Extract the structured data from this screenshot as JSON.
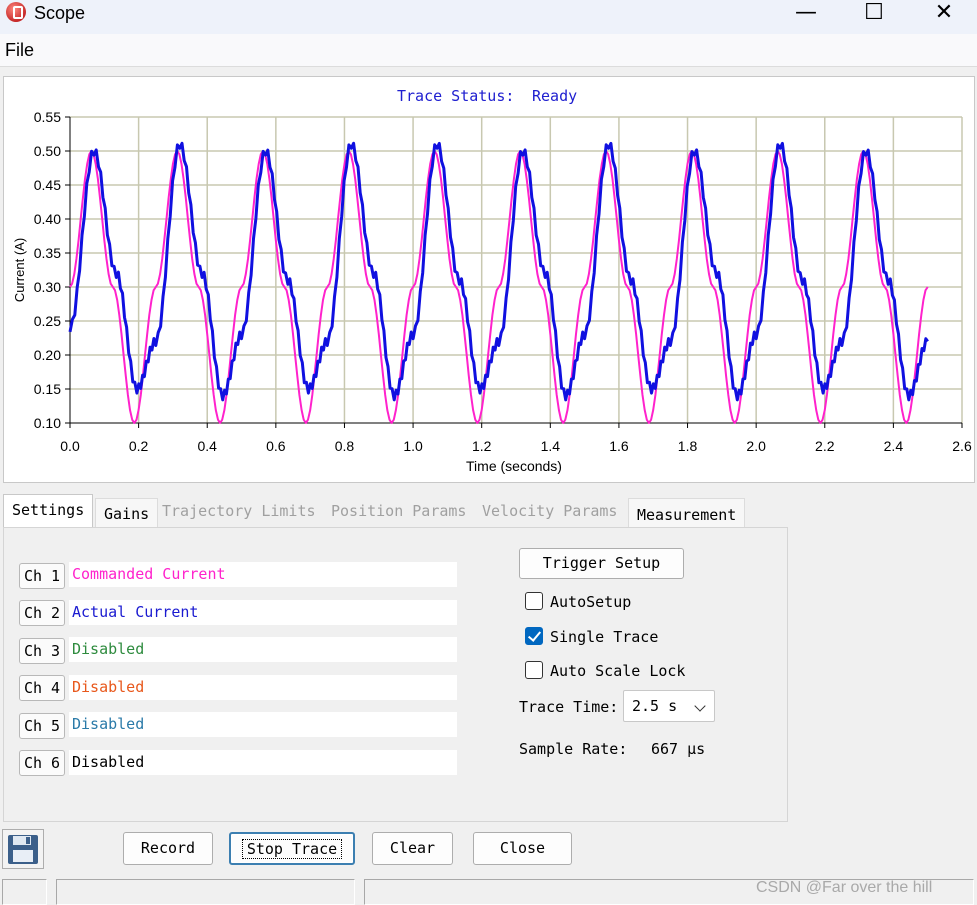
{
  "window": {
    "title": "Scope",
    "controls": {
      "minimize": "—",
      "maximize": "☐",
      "close": "✕"
    }
  },
  "menu": {
    "file": "File"
  },
  "chart": {
    "status_label": "Trace Status:",
    "status_value": "Ready",
    "colors": {
      "commanded": "#ff22cc",
      "actual": "#1010e0",
      "grid": "#c8c8b0",
      "status_text": "#2020d0"
    }
  },
  "chart_data": {
    "type": "line",
    "xlabel": "Time (seconds)",
    "ylabel": "Current (A)",
    "xlim": [
      0.0,
      2.6
    ],
    "ylim": [
      0.1,
      0.55
    ],
    "x_ticks": [
      "0.0",
      "0.2",
      "0.4",
      "0.6",
      "0.8",
      "1.0",
      "1.2",
      "1.4",
      "1.6",
      "1.8",
      "2.0",
      "2.2",
      "2.4",
      "2.6"
    ],
    "y_ticks": [
      "0.10",
      "0.15",
      "0.20",
      "0.25",
      "0.30",
      "0.35",
      "0.40",
      "0.45",
      "0.50",
      "0.55"
    ],
    "grid": true,
    "x_end": 2.5,
    "series": [
      {
        "name": "Commanded Current",
        "color": "#ff22cc",
        "x": [
          0.0,
          0.0625,
          0.125,
          0.1875,
          0.25,
          0.3125,
          0.375,
          0.4375,
          0.5,
          0.5625,
          0.625,
          0.6875,
          0.75,
          0.8125,
          0.875,
          0.9375,
          1.0,
          1.0625,
          1.125,
          1.1875,
          1.25,
          1.3125,
          1.375,
          1.4375,
          1.5,
          1.5625,
          1.625,
          1.6875,
          1.75,
          1.8125,
          1.875,
          1.9375,
          2.0,
          2.0625,
          2.125,
          2.1875,
          2.25,
          2.3125,
          2.375,
          2.4375,
          2.5
        ],
        "values": [
          0.3,
          0.5,
          0.3,
          0.1,
          0.3,
          0.5,
          0.3,
          0.1,
          0.3,
          0.5,
          0.3,
          0.1,
          0.3,
          0.5,
          0.3,
          0.1,
          0.3,
          0.5,
          0.3,
          0.1,
          0.3,
          0.5,
          0.3,
          0.1,
          0.3,
          0.5,
          0.3,
          0.1,
          0.3,
          0.5,
          0.3,
          0.1,
          0.3,
          0.5,
          0.3,
          0.1,
          0.3,
          0.5,
          0.3,
          0.1,
          0.3
        ]
      },
      {
        "name": "Actual Current",
        "color": "#1010e0",
        "x": [
          0.0,
          0.07,
          0.135,
          0.195,
          0.25,
          0.32,
          0.385,
          0.445,
          0.5,
          0.57,
          0.635,
          0.695,
          0.75,
          0.82,
          0.885,
          0.945,
          1.0,
          1.07,
          1.135,
          1.195,
          1.25,
          1.32,
          1.385,
          1.445,
          1.5,
          1.57,
          1.635,
          1.695,
          1.75,
          1.82,
          1.885,
          1.945,
          2.0,
          2.07,
          2.135,
          2.195,
          2.25,
          2.32,
          2.385,
          2.445,
          2.5
        ],
        "values": [
          0.24,
          0.5,
          0.32,
          0.15,
          0.22,
          0.51,
          0.32,
          0.14,
          0.23,
          0.5,
          0.31,
          0.15,
          0.22,
          0.51,
          0.32,
          0.14,
          0.23,
          0.51,
          0.31,
          0.15,
          0.22,
          0.5,
          0.32,
          0.14,
          0.23,
          0.51,
          0.31,
          0.15,
          0.22,
          0.5,
          0.32,
          0.14,
          0.23,
          0.51,
          0.31,
          0.15,
          0.22,
          0.5,
          0.31,
          0.14,
          0.22
        ]
      }
    ]
  },
  "tabs": [
    {
      "label": "Settings",
      "state": "active"
    },
    {
      "label": "Gains",
      "state": "enabled"
    },
    {
      "label": "Trajectory Limits",
      "state": "disabled"
    },
    {
      "label": "Position Params",
      "state": "disabled"
    },
    {
      "label": "Velocity Params",
      "state": "disabled"
    },
    {
      "label": "Measurement",
      "state": "enabled"
    }
  ],
  "channels": [
    {
      "button": "Ch 1",
      "value": "Commanded Current",
      "color": "#ff22cc"
    },
    {
      "button": "Ch 2",
      "value": "Actual Current",
      "color": "#1a1ad0"
    },
    {
      "button": "Ch 3",
      "value": "Disabled",
      "color": "#2e8b3e"
    },
    {
      "button": "Ch 4",
      "value": "Disabled",
      "color": "#e8581c"
    },
    {
      "button": "Ch 5",
      "value": "Disabled",
      "color": "#2a7aa8"
    },
    {
      "button": "Ch 6",
      "value": "Disabled",
      "color": "#000000"
    }
  ],
  "settings": {
    "trigger_setup": "Trigger Setup",
    "auto_setup": {
      "label": "AutoSetup",
      "checked": false
    },
    "single_trace": {
      "label": "Single Trace",
      "checked": true
    },
    "auto_scale_lock": {
      "label": "Auto Scale Lock",
      "checked": false
    },
    "trace_time_label": "Trace Time:",
    "trace_time_value": "2.5 s",
    "sample_rate_label": "Sample Rate:",
    "sample_rate_value": "667 μs"
  },
  "buttons": {
    "record": "Record",
    "stop_trace": "Stop Trace",
    "clear": "Clear",
    "close": "Close"
  },
  "watermark": "CSDN @Far over the hill"
}
